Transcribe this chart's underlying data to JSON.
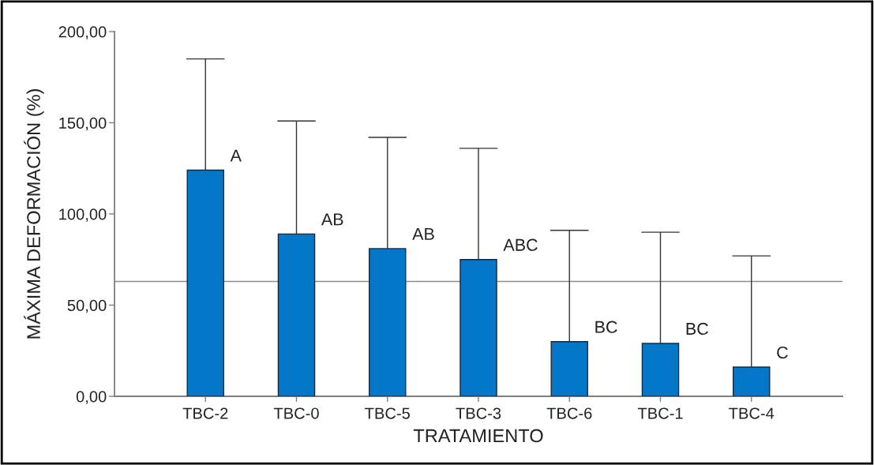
{
  "chart_data": {
    "type": "bar",
    "xlabel": "TRATAMIENTO",
    "ylabel": "MÁXIMA DEFORMACIÓN (%)",
    "categories": [
      "TBC-2",
      "TBC-0",
      "TBC-5",
      "TBC-3",
      "TBC-6",
      "TBC-1",
      "TBC-4"
    ],
    "values": [
      124,
      89,
      81,
      75,
      30,
      29,
      16
    ],
    "color": "#0577c8",
    "errors": [
      [
        124,
        185
      ],
      [
        89,
        151
      ],
      [
        81,
        142
      ],
      [
        75,
        136
      ],
      [
        30,
        91
      ],
      [
        29,
        90
      ],
      [
        16,
        77
      ]
    ],
    "ylim": [
      0,
      200
    ],
    "yticks": [
      {
        "value": 0,
        "label": "0,00"
      },
      {
        "value": 50,
        "label": "50,00"
      },
      {
        "value": 100,
        "label": "100,00"
      },
      {
        "value": 150,
        "label": "150,00"
      },
      {
        "value": 200,
        "label": "200,00"
      }
    ],
    "ref_lines": [
      {
        "axis": "y",
        "value": 63,
        "color": "#8c8c8c"
      }
    ],
    "annotations": [
      {
        "text": "A",
        "x": "TBC-2",
        "y": 124
      },
      {
        "text": "AB",
        "x": "TBC-0",
        "y": 89
      },
      {
        "text": "AB",
        "x": "TBC-5",
        "y": 81
      },
      {
        "text": "ABC",
        "x": "TBC-3",
        "y": 75
      },
      {
        "text": "BC",
        "x": "TBC-6",
        "y": 30
      },
      {
        "text": "BC",
        "x": "TBC-1",
        "y": 29
      },
      {
        "text": "C",
        "x": "TBC-4",
        "y": 16
      }
    ]
  }
}
